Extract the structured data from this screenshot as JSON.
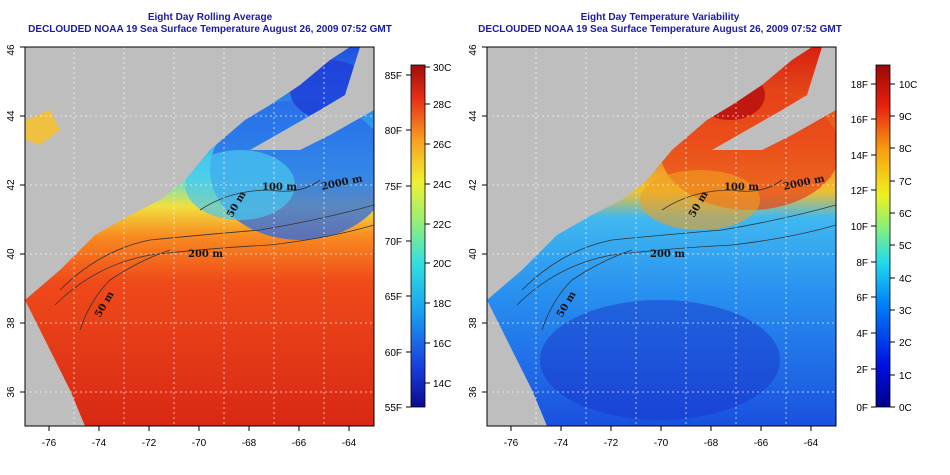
{
  "left_panel": {
    "title_line1": "Eight Day Rolling Average",
    "title_line2": "DECLOUDED NOAA 19 Sea Surface Temperature August 26, 2009 07:52 GMT",
    "x_ticks": [
      "-76",
      "-74",
      "-72",
      "-70",
      "-68",
      "-66",
      "-64"
    ],
    "y_ticks": [
      "36",
      "38",
      "40",
      "42",
      "44",
      "46"
    ],
    "colorbar_f": [
      "85F",
      "80F",
      "75F",
      "70F",
      "65F",
      "60F",
      "55F"
    ],
    "colorbar_c": [
      "30C",
      "28C",
      "26C",
      "24C",
      "22C",
      "20C",
      "18C",
      "16C",
      "14C"
    ],
    "contour_labels": [
      "200 m",
      "100 m",
      "50 m",
      "2000 m",
      "50 m"
    ]
  },
  "right_panel": {
    "title_line1": "Eight Day Temperature Variability",
    "title_line2": "DECLOUDED NOAA 19 Sea Surface Temperature August 26, 2009 07:52 GMT",
    "x_ticks": [
      "-76",
      "-74",
      "-72",
      "-70",
      "-68",
      "-66",
      "-64"
    ],
    "y_ticks": [
      "36",
      "38",
      "40",
      "42",
      "44",
      "46"
    ],
    "colorbar_f": [
      "18F",
      "16F",
      "14F",
      "12F",
      "10F",
      "8F",
      "6F",
      "4F",
      "2F",
      "0F"
    ],
    "colorbar_c": [
      "10C",
      "9C",
      "8C",
      "7C",
      "6C",
      "5C",
      "4C",
      "3C",
      "2C",
      "1C",
      "0C"
    ],
    "contour_labels": [
      "200 m",
      "100 m",
      "50 m",
      "2000 m",
      "50 m"
    ]
  },
  "colors": {
    "land": "#bebebe",
    "title": "#1a1aa6",
    "warm": "#e8371a",
    "hot": "#c01010",
    "cool": "#1e5adc",
    "cyan": "#3cc8f0"
  }
}
